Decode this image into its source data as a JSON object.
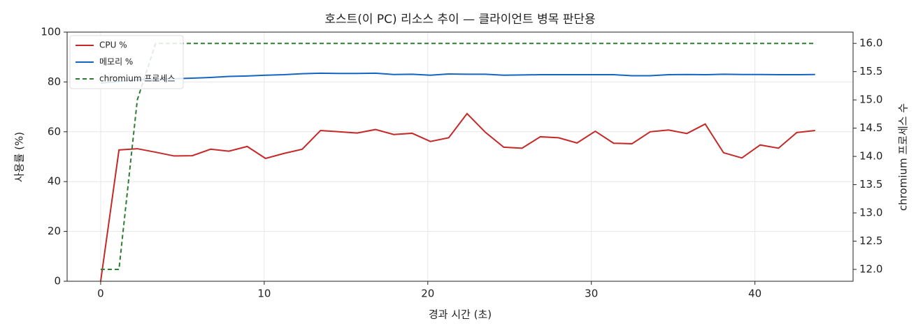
{
  "chart_data": {
    "type": "line",
    "title": "호스트(이 PC) 리소스 추이 — 클라이언트 병목 판단용",
    "x_label": "경과 시간 (초)",
    "y_label": "사용률 (%)",
    "y2_label": "chromium 프로세스 수",
    "x": [
      0,
      1.12,
      2.24,
      3.36,
      4.48,
      5.6,
      6.72,
      7.84,
      8.96,
      10.08,
      11.2,
      12.32,
      13.44,
      14.56,
      15.68,
      16.8,
      17.92,
      19.04,
      20.16,
      21.28,
      22.4,
      23.52,
      24.64,
      25.76,
      26.88,
      28,
      29.12,
      30.24,
      31.36,
      32.48,
      33.6,
      34.72,
      35.84,
      36.96,
      38.08,
      39.2,
      40.32,
      41.44,
      42.56,
      43.68
    ],
    "series": [
      {
        "name": "CPU %",
        "color": "#c62828",
        "dash": false,
        "axis": "y",
        "values": [
          0,
          52.7,
          53.2,
          51.8,
          50.3,
          50.4,
          53,
          52.2,
          54.1,
          49.3,
          51.3,
          53,
          60.5,
          60,
          59.5,
          60.9,
          58.9,
          59.4,
          56.1,
          57.6,
          67.3,
          59.8,
          53.8,
          53.4,
          58,
          57.6,
          55.5,
          60.2,
          55.4,
          55.2,
          60,
          60.7,
          59.3,
          63.1,
          51.6,
          49.5,
          54.7,
          53.4,
          59.7,
          60.5
        ]
      },
      {
        "name": "메모리 %",
        "color": "#1565c0",
        "dash": false,
        "axis": "y",
        "values": [
          79.5,
          80.2,
          80.8,
          81.1,
          81.3,
          81.5,
          81.8,
          82.2,
          82.4,
          82.7,
          82.9,
          83.3,
          83.5,
          83.4,
          83.4,
          83.5,
          83,
          83.1,
          82.7,
          83.2,
          83.1,
          83.1,
          82.7,
          82.8,
          82.9,
          82.9,
          82.9,
          82.9,
          82.9,
          82.5,
          82.5,
          82.9,
          83,
          82.9,
          83.1,
          83,
          83,
          82.9,
          82.9,
          83
        ]
      },
      {
        "name": "chromium 프로세스",
        "color": "#2e7d32",
        "dash": true,
        "axis": "y2",
        "values": [
          12,
          12,
          15,
          16,
          16,
          16,
          16,
          16,
          16,
          16,
          16,
          16,
          16,
          16,
          16,
          16,
          16,
          16,
          16,
          16,
          16,
          16,
          16,
          16,
          16,
          16,
          16,
          16,
          16,
          16,
          16,
          16,
          16,
          16,
          16,
          16,
          16,
          16,
          16,
          16
        ]
      }
    ],
    "xlim": [
      -2.05,
      46
    ],
    "xticks": [
      0,
      10,
      20,
      30,
      40
    ],
    "ylim": [
      0,
      100
    ],
    "yticks": [
      0,
      20,
      40,
      60,
      80,
      100
    ],
    "y2lim": [
      11.79,
      16.2
    ],
    "y2ticks": [
      {
        "value": 12,
        "label": "12.0"
      },
      {
        "value": 12.5,
        "label": "12.5"
      },
      {
        "value": 13,
        "label": "13.0"
      },
      {
        "value": 13.5,
        "label": "13.5"
      },
      {
        "value": 14,
        "label": "14.0"
      },
      {
        "value": 14.5,
        "label": "14.5"
      },
      {
        "value": 15,
        "label": "15.0"
      },
      {
        "value": 15.5,
        "label": "15.5"
      },
      {
        "value": 16,
        "label": "16.0"
      }
    ],
    "grid": true,
    "legend": "upper-left"
  }
}
